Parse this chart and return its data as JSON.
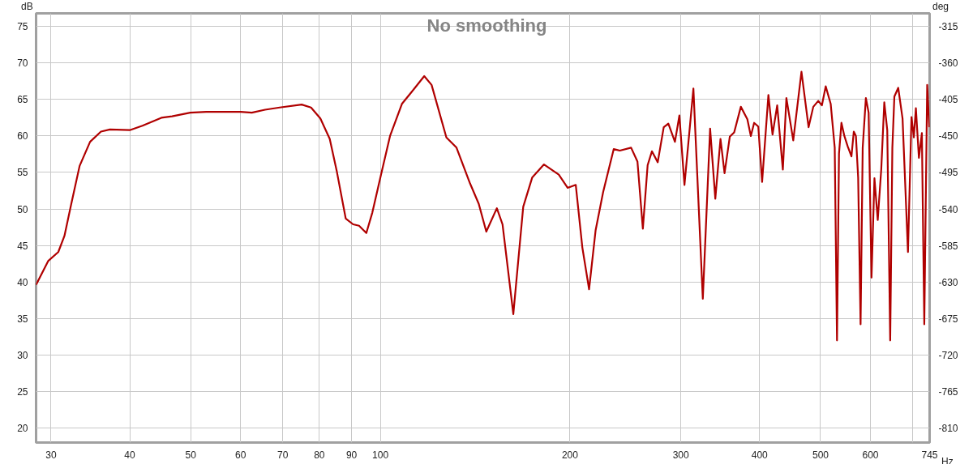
{
  "chart_data": {
    "type": "line",
    "title": "No smoothing",
    "xlabel": "Hz",
    "ylabel": "dB",
    "y2label": "deg",
    "log": "x",
    "grid": true,
    "marker": "none",
    "line_style": "solid",
    "xlim": [
      28.4,
      745
    ],
    "xticks": [
      30,
      40,
      50,
      60,
      70,
      80,
      90,
      100,
      200,
      300,
      400,
      500,
      600,
      {
        "value": 700,
        "label": null
      },
      745
    ],
    "ylim": [
      18,
      76.8
    ],
    "yticks": [
      20,
      25,
      30,
      35,
      40,
      45,
      50,
      55,
      60,
      65,
      70,
      75
    ],
    "y2lim": [
      -828,
      -298.8
    ],
    "y2ticks": [
      -810,
      -765,
      -720,
      -675,
      -630,
      -585,
      -540,
      -495,
      -450,
      -405,
      -360,
      -315
    ],
    "x": [
      28.4,
      29.7,
      30.8,
      31.5,
      32.3,
      33.3,
      34.6,
      36.0,
      37.2,
      40.0,
      41.9,
      44.9,
      46.7,
      49.9,
      52.9,
      56.6,
      60.0,
      62.5,
      65.6,
      69.2,
      75.0,
      77.6,
      80.3,
      83.1,
      85.3,
      88.1,
      90.5,
      92.5,
      95.0,
      97.1,
      100,
      103.6,
      108.2,
      113.0,
      117.4,
      120.6,
      127.3,
      132.1,
      138.8,
      143.3,
      147.3,
      153.1,
      156.3,
      162.6,
      168.6,
      174.2,
      181.9,
      192.0,
      198.3,
      204.3,
      209.3,
      214.5,
      219.7,
      225.8,
      234.7,
      240.0,
      250.1,
      256.0,
      261.1,
      265.7,
      269.9,
      275.7,
      281.8,
      286.6,
      293.6,
      298.4,
      304.0,
      314.1,
      325.1,
      333.9,
      340.3,
      346.8,
      352.0,
      358.8,
      364.6,
      373.6,
      382.6,
      387.5,
      392.2,
      398.2,
      403.8,
      413.2,
      419.5,
      426.7,
      435.6,
      441.3,
      452.5,
      466.3,
      478.6,
      486.9,
      495.8,
      502.5,
      509.5,
      518.9,
      526.6,
      531.0,
      534.9,
      539.7,
      545.5,
      552.1,
      559.8,
      564.6,
      569.0,
      573.7,
      578.8,
      583.3,
      590.1,
      596.1,
      602.4,
      608.9,
      616.3,
      624.3,
      631.2,
      638.1,
      645.0,
      650.1,
      654.9,
      664.2,
      674.8,
      688.3,
      697.2,
      703.2,
      708.5,
      716.4,
      724.2,
      730.6,
      738.4,
      744
    ],
    "series": [
      {
        "color": "#b00000",
        "values": [
          39.6,
          42.9,
          44.1,
          46.3,
          50.7,
          55.9,
          59.2,
          60.6,
          60.9,
          60.8,
          61.4,
          62.5,
          62.7,
          63.2,
          63.3,
          63.3,
          63.3,
          63.2,
          63.6,
          63.9,
          64.3,
          63.9,
          62.4,
          59.6,
          55.1,
          48.7,
          47.9,
          47.7,
          46.7,
          49.5,
          54.3,
          60.0,
          64.4,
          66.4,
          68.2,
          67.0,
          59.8,
          58.4,
          53.5,
          50.7,
          46.9,
          50.1,
          47.9,
          35.6,
          50.3,
          54.3,
          56.1,
          54.7,
          52.9,
          53.3,
          44.7,
          39.0,
          47.1,
          52.3,
          58.2,
          58.0,
          58.4,
          56.5,
          47.3,
          56.0,
          57.9,
          56.4,
          61.2,
          61.7,
          59.2,
          62.8,
          53.3,
          66.5,
          37.7,
          61.0,
          51.4,
          59.6,
          54.9,
          59.9,
          60.5,
          64.0,
          62.3,
          60.0,
          61.8,
          61.3,
          53.7,
          65.6,
          60.2,
          64.2,
          55.4,
          65.2,
          59.4,
          68.8,
          61.2,
          64.0,
          64.8,
          64.2,
          66.8,
          64.4,
          58.4,
          32.0,
          57.6,
          61.8,
          60.0,
          58.6,
          57.2,
          60.6,
          60.0,
          54.3,
          34.2,
          58.4,
          65.2,
          63.2,
          40.6,
          54.2,
          48.5,
          55.5,
          64.6,
          60.8,
          32.0,
          58.4,
          65.4,
          66.6,
          62.4,
          44.1,
          62.6,
          59.8,
          63.8,
          57.0,
          60.4,
          34.2,
          67.0,
          61.2
        ]
      }
    ]
  }
}
